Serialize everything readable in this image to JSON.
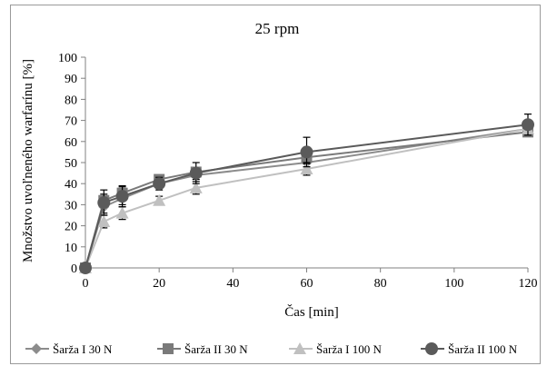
{
  "chart_data": {
    "type": "line",
    "title": "25 rpm",
    "xlabel": "Čas [min]",
    "ylabel": "Množstvo uvoľneného warfarínu [%]",
    "xlim": [
      0,
      120
    ],
    "ylim": [
      0,
      100
    ],
    "x_ticks": [
      0,
      20,
      40,
      60,
      80,
      100,
      120
    ],
    "y_ticks": [
      0,
      10,
      20,
      30,
      40,
      50,
      60,
      70,
      80,
      90,
      100
    ],
    "grid": false,
    "legend_position": "bottom",
    "x": [
      0,
      5,
      10,
      20,
      30,
      60,
      120
    ],
    "series": [
      {
        "name": "Šarža I 30 N",
        "marker": "diamond",
        "color": "#8c8c8c",
        "values": [
          0,
          29,
          33,
          40,
          44,
          50,
          66
        ],
        "errors": [
          0,
          3,
          3,
          2,
          2,
          2,
          2
        ]
      },
      {
        "name": "Šarža II 30 N",
        "marker": "square",
        "color": "#7a7a7a",
        "values": [
          0,
          32,
          35.5,
          42,
          45.5,
          52.5,
          64.5
        ],
        "errors": [
          0,
          3,
          3,
          2,
          2,
          3,
          2
        ]
      },
      {
        "name": "Šarža I 100 N",
        "marker": "triangle",
        "color": "#c0c0c0",
        "values": [
          0,
          22,
          26,
          32,
          38,
          47,
          66
        ],
        "errors": [
          0,
          3,
          3,
          2,
          3,
          3,
          2
        ]
      },
      {
        "name": "Šarža II 100 N",
        "marker": "circle",
        "color": "#5a5a5a",
        "values": [
          0,
          31,
          34,
          40,
          45,
          55,
          68
        ],
        "errors": [
          0,
          6,
          5,
          3,
          5,
          7,
          5
        ]
      }
    ]
  }
}
